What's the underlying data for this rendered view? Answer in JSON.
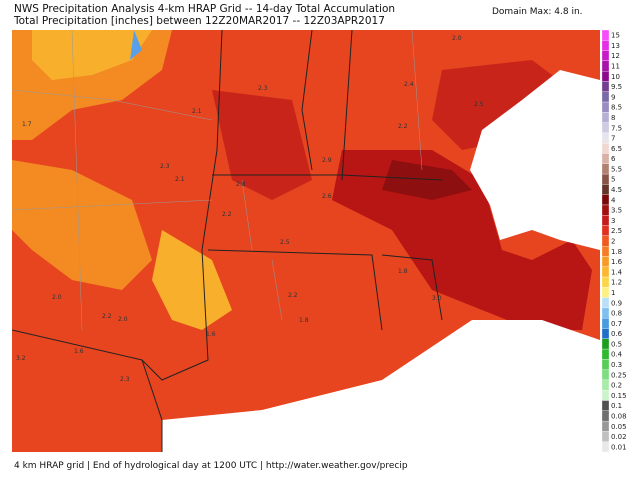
{
  "header": {
    "title": "NWS Precipitation Analysis 4-km HRAP Grid -- 14-day Total Accumulation",
    "subtitle": "Total Precipitation [inches] between 12Z20MAR2017 -- 12Z03APR2017",
    "domain_max": "Domain Max: 4.8 in."
  },
  "footer": "4 km HRAP grid | End of hydrological day at 1200 UTC | http://water.weather.gov/precip",
  "map_labels": [
    "2.0",
    "2.3",
    "2.4",
    "2.1",
    "1.7",
    "2.5",
    "2.2",
    "2.9",
    "2.3",
    "2.1",
    "2.8",
    "2.6",
    "2.2",
    "2.5",
    "2.2",
    "2.0",
    "2.2",
    "2.0",
    "1.8",
    "1.6",
    "1.8",
    "3.0",
    "3.2",
    "1.6",
    "2.3"
  ],
  "legend": {
    "items": [
      {
        "label": "15",
        "color": "#f64dfa"
      },
      {
        "label": "13",
        "color": "#e62de6"
      },
      {
        "label": "12",
        "color": "#c81bc8"
      },
      {
        "label": "11",
        "color": "#a812a8"
      },
      {
        "label": "10",
        "color": "#8c0a8c"
      },
      {
        "label": "9.5",
        "color": "#72408e"
      },
      {
        "label": "9",
        "color": "#7a6aa8"
      },
      {
        "label": "8.5",
        "color": "#9a8ec0"
      },
      {
        "label": "8",
        "color": "#b7b0d4"
      },
      {
        "label": "7.5",
        "color": "#cfcbe2"
      },
      {
        "label": "7",
        "color": "#e8e4ee"
      },
      {
        "label": "6.5",
        "color": "#f0d8d0"
      },
      {
        "label": "6",
        "color": "#d8b0a4"
      },
      {
        "label": "5.5",
        "color": "#b08070"
      },
      {
        "label": "5",
        "color": "#885448"
      },
      {
        "label": "4.5",
        "color": "#643428"
      },
      {
        "label": "4",
        "color": "#7a0808"
      },
      {
        "label": "3.5",
        "color": "#a01010"
      },
      {
        "label": "3",
        "color": "#c41c1c"
      },
      {
        "label": "2.5",
        "color": "#e03020"
      },
      {
        "label": "2",
        "color": "#f05a20"
      },
      {
        "label": "1.8",
        "color": "#f57c22"
      },
      {
        "label": "1.6",
        "color": "#f89a26"
      },
      {
        "label": "1.4",
        "color": "#fab830"
      },
      {
        "label": "1.2",
        "color": "#fcd648"
      },
      {
        "label": "1",
        "color": "#fef080"
      },
      {
        "label": "0.9",
        "color": "#b8e0f8"
      },
      {
        "label": "0.8",
        "color": "#80c0f0"
      },
      {
        "label": "0.7",
        "color": "#4a9ae0"
      },
      {
        "label": "0.6",
        "color": "#2070c8"
      },
      {
        "label": "0.5",
        "color": "#1e9e1e"
      },
      {
        "label": "0.4",
        "color": "#30b830"
      },
      {
        "label": "0.3",
        "color": "#58cc58"
      },
      {
        "label": "0.25",
        "color": "#80dc80"
      },
      {
        "label": "0.2",
        "color": "#a8eaa8"
      },
      {
        "label": "0.15",
        "color": "#ccf4cc"
      },
      {
        "label": "0.1",
        "color": "#505050"
      },
      {
        "label": "0.08",
        "color": "#707070"
      },
      {
        "label": "0.05",
        "color": "#989898"
      },
      {
        "label": "0.02",
        "color": "#c0c0c0"
      },
      {
        "label": "0.01",
        "color": "#e8e8e8"
      }
    ]
  }
}
